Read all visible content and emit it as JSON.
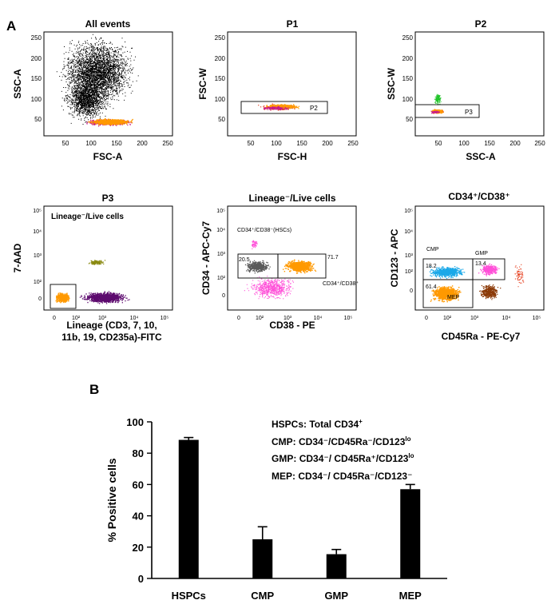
{
  "panel_labels": {
    "a": "A",
    "b": "B"
  },
  "colors": {
    "events": "#000000",
    "gated": "#ff9900",
    "red": "#e53917",
    "magenta": "#c6188c",
    "green": "#22c42a",
    "purple": "#5d0a6e",
    "olive": "#8a8a12",
    "grey": "#5a5a5a",
    "cyan": "#1aa8e8",
    "pink": "#ff4fd8",
    "brown": "#8b3a08",
    "bar": "#000000"
  },
  "flow_plots": [
    {
      "title": "All events",
      "xlabel": "FSC-A",
      "ylabel": "SSC-A",
      "x_ticks": [
        "50",
        "100",
        "150",
        "200",
        "250"
      ],
      "y_ticks": [
        "50",
        "100",
        "150",
        "200",
        "250"
      ],
      "populations": [
        "all events (black)",
        "gated cells (orange/magenta)"
      ]
    },
    {
      "title": "P1",
      "xlabel": "FSC-H",
      "ylabel": "FSC-W",
      "x_ticks": [
        "50",
        "100",
        "150",
        "200",
        "250"
      ],
      "y_ticks": [
        "50",
        "100",
        "150",
        "200",
        "250"
      ],
      "gates": [
        {
          "name": "P2"
        }
      ]
    },
    {
      "title": "P2",
      "xlabel": "SSC-A",
      "ylabel": "SSC-W",
      "x_ticks": [
        "50",
        "100",
        "150",
        "200",
        "250"
      ],
      "y_ticks": [
        "50",
        "100",
        "150",
        "200",
        "250"
      ],
      "gates": [
        {
          "name": "P3"
        }
      ]
    },
    {
      "title": "P3",
      "xlabel_line1": "Lineage (CD3, 7, 10,",
      "xlabel_line2": "11b, 19, CD235a)-FITC",
      "ylabel": "7-AAD",
      "x_ticks": [
        "0",
        "10²",
        "10³",
        "10⁴",
        "10⁵"
      ],
      "y_ticks": [
        "0",
        "10²",
        "10³",
        "10⁴",
        "10⁵"
      ],
      "gates": [
        {
          "name": "Lineage⁻/Live cells"
        }
      ]
    },
    {
      "title": "Lineage⁻/Live cells",
      "xlabel": "CD38 - PE",
      "ylabel": "CD34 - APC-Cy7",
      "x_ticks": [
        "0",
        "10²",
        "10³",
        "10⁴",
        "10⁵"
      ],
      "y_ticks": [
        "0",
        "10²",
        "10³",
        "10⁴",
        "10⁵"
      ],
      "gates": [
        {
          "name": "CD34⁺/CD38⁻(HSCs)",
          "percent": 20.5
        },
        {
          "name": "CD34⁺/CD38⁺",
          "percent": 71.7
        }
      ]
    },
    {
      "title": "CD34⁺/CD38⁺",
      "xlabel": "CD45Ra - PE-Cy7",
      "ylabel": "CD123 - APC",
      "x_ticks": [
        "0",
        "10²",
        "10³",
        "10⁴",
        "10⁵"
      ],
      "y_ticks": [
        "0",
        "10²",
        "10³",
        "10⁴",
        "10⁵"
      ],
      "gates": [
        {
          "name": "CMP",
          "percent": 18.2
        },
        {
          "name": "GMP",
          "percent": 13.4
        },
        {
          "name": "MEP",
          "percent": 61.4
        }
      ]
    }
  ],
  "chart_data": {
    "type": "bar",
    "title": "",
    "categories": [
      "HSPCs",
      "CMP",
      "GMP",
      "MEP"
    ],
    "values": [
      88.5,
      25,
      15.5,
      57
    ],
    "errors": [
      1.5,
      8,
      3,
      3
    ],
    "ylabel": "% Positive cells",
    "xlabel": "",
    "ylim": [
      0,
      100
    ],
    "y_ticks": [
      0,
      20,
      40,
      60,
      80,
      100
    ],
    "legend": [
      {
        "name": "HSPCs",
        "def": "Total CD34",
        "sup": "+"
      },
      {
        "name": "CMP",
        "def": "CD34⁻/CD45Ra⁻/CD123",
        "sup": "lo"
      },
      {
        "name": "GMP",
        "def": "CD34⁻/ CD45Ra⁺/CD123",
        "sup": "lo"
      },
      {
        "name": "MEP",
        "def": "CD34⁻/ CD45Ra⁻/CD123⁻",
        "sup": ""
      }
    ]
  }
}
